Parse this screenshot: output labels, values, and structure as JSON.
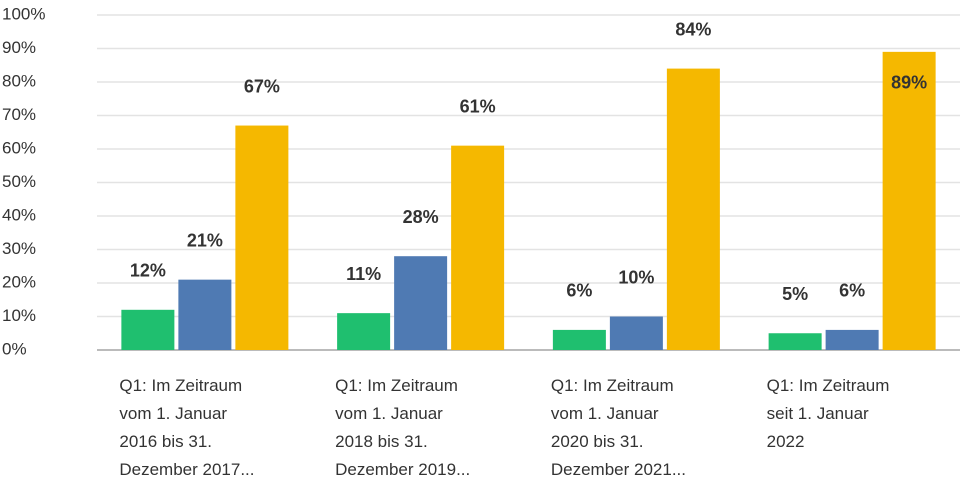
{
  "chart_data": {
    "type": "bar",
    "categories": [
      "Q1: Im Zeitraum vom 1. Januar 2016 bis 31. Dezember 2017...",
      "Q1: Im Zeitraum vom 1. Januar 2018 bis 31. Dezember 2019...",
      "Q1: Im Zeitraum vom 1. Januar 2020 bis 31. Dezember 2021...",
      "Q1: Im Zeitraum seit 1. Januar 2022"
    ],
    "series": [
      {
        "color": "#1fbf6f",
        "values": [
          12,
          11,
          6,
          5
        ],
        "value_labels": [
          "12%",
          "11%",
          "6%",
          "5%"
        ]
      },
      {
        "color": "#4f7ab3",
        "values": [
          21,
          28,
          10,
          6
        ],
        "value_labels": [
          "21%",
          "28%",
          "10%",
          "6%"
        ]
      },
      {
        "color": "#f5b800",
        "values": [
          67,
          61,
          84,
          89
        ],
        "value_labels": [
          "67%",
          "61%",
          "84%",
          "89%"
        ]
      }
    ],
    "ylim": [
      0,
      100
    ],
    "yticks": [
      {
        "value": 0,
        "label": "0%"
      },
      {
        "value": 10,
        "label": "10%"
      },
      {
        "value": 20,
        "label": "20%"
      },
      {
        "value": 30,
        "label": "30%"
      },
      {
        "value": 40,
        "label": "40%"
      },
      {
        "value": 50,
        "label": "50%"
      },
      {
        "value": 60,
        "label": "60%"
      },
      {
        "value": 70,
        "label": "70%"
      },
      {
        "value": 80,
        "label": "80%"
      },
      {
        "value": 90,
        "label": "90%"
      },
      {
        "value": 100,
        "label": "100%"
      }
    ],
    "grid": true
  }
}
